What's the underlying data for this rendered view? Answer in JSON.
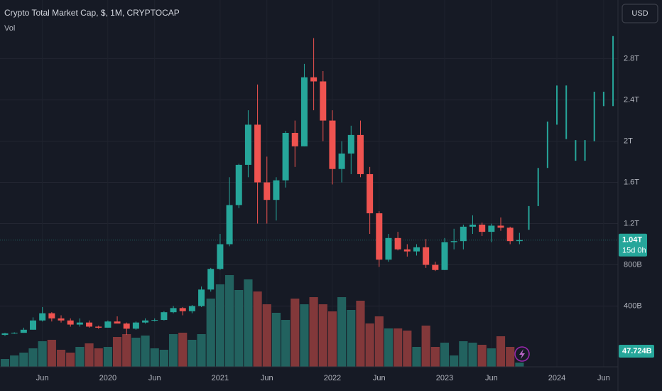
{
  "chart_data": {
    "type": "candlestick",
    "title": "Crypto Total Market Cap, $, 1M, CRYPTOCAP",
    "volume_title": "Vol",
    "currency": "USD",
    "categories": [
      null,
      null,
      null,
      null,
      "Jun",
      null,
      null,
      null,
      null,
      null,
      null,
      "2020",
      null,
      null,
      null,
      null,
      "Jun",
      null,
      null,
      null,
      null,
      null,
      null,
      "2021",
      null,
      null,
      null,
      null,
      "Jun",
      null,
      null,
      null,
      null,
      null,
      null,
      "2022",
      null,
      null,
      null,
      null,
      "Jun",
      null,
      null,
      null,
      null,
      null,
      null,
      "2023",
      null,
      null,
      null,
      null,
      "Jun",
      null,
      null,
      null,
      null,
      null,
      null,
      "2024",
      null,
      null,
      null,
      null,
      "Jun",
      null
    ],
    "open": [
      0.12,
      0.135,
      0.14,
      0.17,
      0.26,
      0.33,
      0.28,
      0.26,
      0.22,
      0.24,
      0.2,
      0.19,
      0.25,
      0.23,
      0.18,
      0.24,
      0.26,
      0.265,
      0.34,
      0.38,
      0.35,
      0.4,
      0.56,
      0.76,
      1.0,
      1.38,
      1.77,
      2.16,
      1.6,
      1.43,
      1.62,
      2.08,
      1.95,
      2.62,
      2.58,
      2.2,
      1.73,
      1.88,
      2.06,
      1.68,
      1.3,
      0.85,
      1.06,
      0.95,
      0.93,
      0.97,
      0.8,
      0.75,
      1.02,
      1.03,
      1.17,
      1.19,
      1.12,
      1.18,
      1.16,
      1.03,
      null,
      null,
      null,
      null,
      null,
      null,
      null,
      null,
      null,
      null
    ],
    "high": [
      0.14,
      0.145,
      0.19,
      0.29,
      0.39,
      0.34,
      0.31,
      0.28,
      0.28,
      0.26,
      0.21,
      0.26,
      0.3,
      0.24,
      0.25,
      0.28,
      0.28,
      0.35,
      0.4,
      0.39,
      0.41,
      0.59,
      0.77,
      1.1,
      1.65,
      1.78,
      2.3,
      2.55,
      1.85,
      1.65,
      2.1,
      2.2,
      2.75,
      3.0,
      2.68,
      2.3,
      2.0,
      2.15,
      2.2,
      1.75,
      1.32,
      1.1,
      1.12,
      1.0,
      1.0,
      1.05,
      0.83,
      1.06,
      1.15,
      1.19,
      1.28,
      1.21,
      1.2,
      1.26,
      1.17,
      1.11,
      1.37,
      1.74,
      2.19,
      2.54,
      2.54,
      2.01,
      2.01,
      2.48,
      2.48,
      3.02
    ],
    "low": [
      0.11,
      0.13,
      0.14,
      0.17,
      0.25,
      0.25,
      0.24,
      0.2,
      0.2,
      0.19,
      0.18,
      0.19,
      0.24,
      0.12,
      0.17,
      0.23,
      0.25,
      0.26,
      0.33,
      0.31,
      0.33,
      0.39,
      0.54,
      0.75,
      0.98,
      1.35,
      1.65,
      1.2,
      1.2,
      1.23,
      1.55,
      1.75,
      1.95,
      2.3,
      2.0,
      1.58,
      1.6,
      1.68,
      1.65,
      1.1,
      0.78,
      0.83,
      0.94,
      0.88,
      0.89,
      0.77,
      0.74,
      0.75,
      0.95,
      0.95,
      1.1,
      1.08,
      1.02,
      1.13,
      1.0,
      1.0,
      1.14,
      1.37,
      1.74,
      2.16,
      2.02,
      1.81,
      1.81,
      2.0,
      2.34,
      2.34
    ],
    "close": [
      0.135,
      0.14,
      0.17,
      0.26,
      0.33,
      0.28,
      0.26,
      0.22,
      0.24,
      0.2,
      0.19,
      0.25,
      0.23,
      0.18,
      0.24,
      0.26,
      0.265,
      0.34,
      0.38,
      0.35,
      0.4,
      0.56,
      0.76,
      1.0,
      1.38,
      1.77,
      2.16,
      1.6,
      1.43,
      1.62,
      2.08,
      1.95,
      2.62,
      2.58,
      2.2,
      1.73,
      1.88,
      2.06,
      1.68,
      1.3,
      0.85,
      1.06,
      0.95,
      0.93,
      0.97,
      0.8,
      0.75,
      1.02,
      1.03,
      1.17,
      1.19,
      1.12,
      1.18,
      1.16,
      1.03,
      1.04,
      null,
      null,
      null,
      null,
      null,
      null,
      null,
      null,
      null,
      null
    ],
    "volume": [
      88,
      128,
      160,
      208,
      288,
      304,
      192,
      160,
      224,
      264,
      208,
      224,
      336,
      368,
      328,
      352,
      208,
      192,
      368,
      384,
      304,
      368,
      768,
      928,
      1032,
      864,
      984,
      848,
      704,
      608,
      528,
      768,
      704,
      784,
      704,
      624,
      784,
      640,
      744,
      488,
      568,
      432,
      432,
      408,
      224,
      464,
      224,
      272,
      128,
      288,
      272,
      248,
      208,
      344,
      224,
      47.724,
      null,
      null,
      null,
      null,
      null,
      null,
      null,
      null,
      null,
      null
    ],
    "last_price_label": "1.04T",
    "countdown": "15d 0h",
    "last_volume_label": "47.724B",
    "up_color": "#26a69a",
    "down_color": "#ef5350",
    "volume_up_color": "#22625f",
    "volume_down_color": "#82383a",
    "ylim": [
      -0.19,
      3.37
    ],
    "yticks": [
      {
        "value": 0.4,
        "label": "400B"
      },
      {
        "value": 0.8,
        "label": "800B"
      },
      {
        "value": 1.2,
        "label": "1.2T"
      },
      {
        "value": 1.6,
        "label": "1.6T"
      },
      {
        "value": 2,
        "label": "2T"
      },
      {
        "value": 2.4,
        "label": "2.4T"
      },
      {
        "value": 2.8,
        "label": "2.8T"
      }
    ],
    "volume_lim": [
      0,
      1040
    ],
    "grid": true
  }
}
